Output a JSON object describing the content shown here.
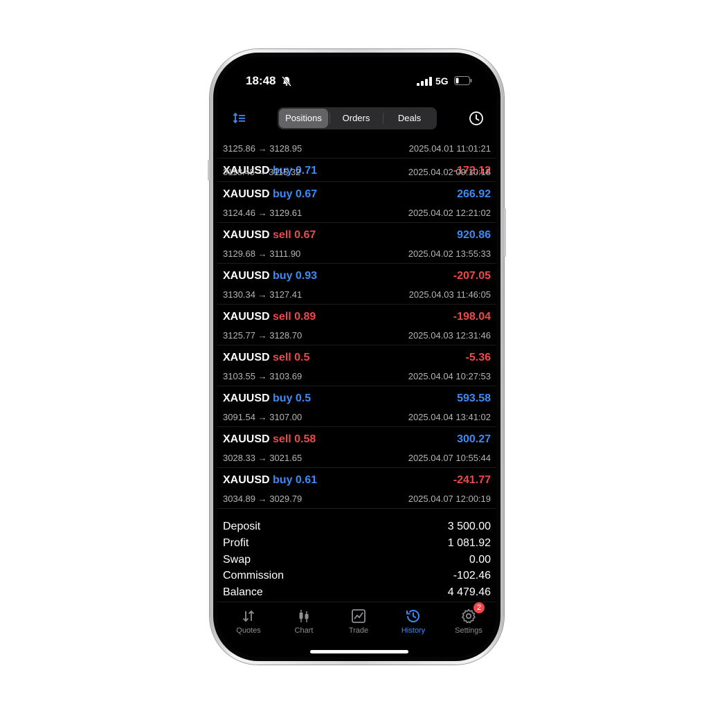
{
  "status_bar": {
    "time": "18:48",
    "network": "5G"
  },
  "segments": [
    {
      "label": "Positions",
      "active": true
    },
    {
      "label": "Orders",
      "active": false
    },
    {
      "label": "Deals",
      "active": false
    }
  ],
  "first_partial": {
    "prices": "3125.86 → 3128.95",
    "datetime": "2025.04.01 11:01:21"
  },
  "trades": [
    {
      "symbol": "XAUUSD",
      "side": "buy 0.71",
      "side_color": "blue",
      "profit": "-172.12",
      "profit_color": "red",
      "prices": "3118.45 → 3115.32",
      "datetime": "2025.04.02 09:10:18"
    },
    {
      "symbol": "XAUUSD",
      "side": "buy 0.67",
      "side_color": "blue",
      "profit": "266.92",
      "profit_color": "blue",
      "prices": "3124.46 → 3129.61",
      "datetime": "2025.04.02 12:21:02"
    },
    {
      "symbol": "XAUUSD",
      "side": "sell 0.67",
      "side_color": "red",
      "profit": "920.86",
      "profit_color": "blue",
      "prices": "3129.68 → 3111.90",
      "datetime": "2025.04.02 13:55:33"
    },
    {
      "symbol": "XAUUSD",
      "side": "buy 0.93",
      "side_color": "blue",
      "profit": "-207.05",
      "profit_color": "red",
      "prices": "3130.34 → 3127.41",
      "datetime": "2025.04.03 11:46:05"
    },
    {
      "symbol": "XAUUSD",
      "side": "sell 0.89",
      "side_color": "red",
      "profit": "-198.04",
      "profit_color": "red",
      "prices": "3125.77 → 3128.70",
      "datetime": "2025.04.03 12:31:46"
    },
    {
      "symbol": "XAUUSD",
      "side": "sell 0.5",
      "side_color": "red",
      "profit": "-5.36",
      "profit_color": "red",
      "prices": "3103.55 → 3103.69",
      "datetime": "2025.04.04 10:27:53"
    },
    {
      "symbol": "XAUUSD",
      "side": "buy 0.5",
      "side_color": "blue",
      "profit": "593.58",
      "profit_color": "blue",
      "prices": "3091.54 → 3107.00",
      "datetime": "2025.04.04 13:41:02"
    },
    {
      "symbol": "XAUUSD",
      "side": "sell 0.58",
      "side_color": "red",
      "profit": "300.27",
      "profit_color": "blue",
      "prices": "3028.33 → 3021.65",
      "datetime": "2025.04.07 10:55:44"
    },
    {
      "symbol": "XAUUSD",
      "side": "buy 0.61",
      "side_color": "blue",
      "profit": "-241.77",
      "profit_color": "red",
      "prices": "3034.89 → 3029.79",
      "datetime": "2025.04.07 12:00:19"
    }
  ],
  "summary": [
    {
      "label": "Deposit",
      "value": "3 500.00"
    },
    {
      "label": "Profit",
      "value": "1 081.92"
    },
    {
      "label": "Swap",
      "value": "0.00"
    },
    {
      "label": "Commission",
      "value": "-102.46"
    },
    {
      "label": "Balance",
      "value": "4 479.46"
    }
  ],
  "tabs": [
    {
      "label": "Quotes",
      "icon": "quotes-icon",
      "active": false
    },
    {
      "label": "Chart",
      "icon": "chart-icon",
      "active": false
    },
    {
      "label": "Trade",
      "icon": "trade-icon",
      "active": false
    },
    {
      "label": "History",
      "icon": "history-icon",
      "active": true
    },
    {
      "label": "Settings",
      "icon": "gear-icon",
      "active": false,
      "badge": "2"
    }
  ],
  "colors": {
    "blue": "#3d8af7",
    "red": "#f0474a",
    "background": "#000000"
  }
}
